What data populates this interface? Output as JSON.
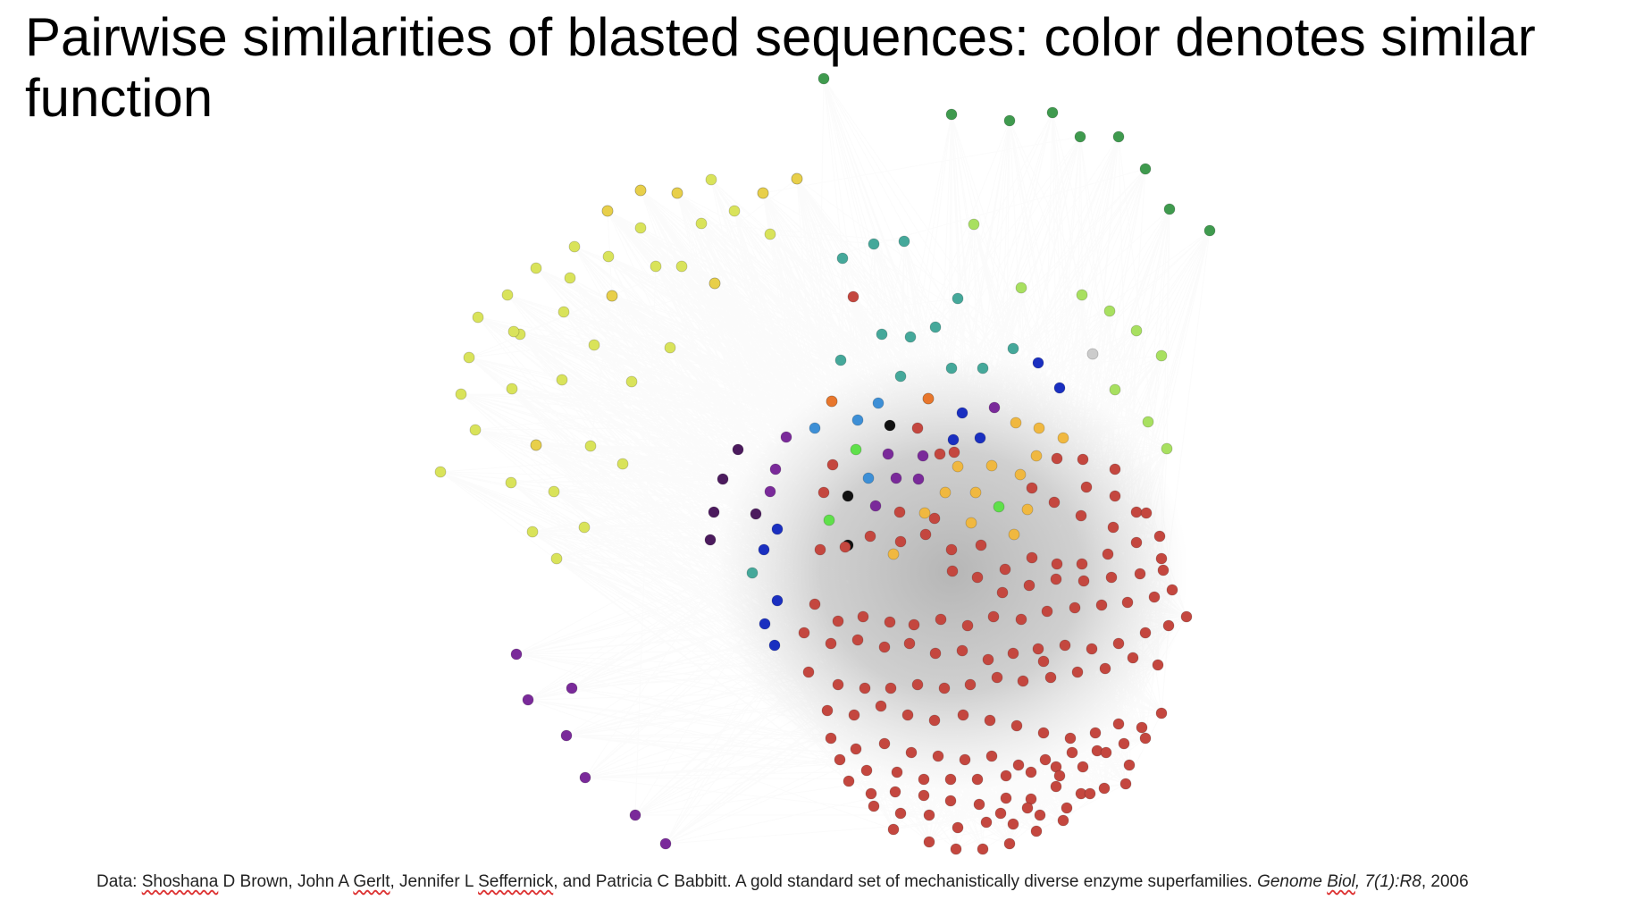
{
  "title": "Pairwise similarities of blasted sequences: color denotes similar function",
  "caption": {
    "prefix": "Data: ",
    "author1_first": "Shoshana",
    "author1_rest": " D Brown, John A ",
    "author2_last": "Gerlt",
    "mid": ", Jennifer L ",
    "author3_last": "Seffernick",
    "after_authors": ", and Patricia C Babbitt. A gold standard set of mechanistically diverse enzyme superfamilies. ",
    "journal_a": "Genome ",
    "journal_b": "Biol",
    "volume": ", 7(1):R8",
    "year": ", 2006"
  },
  "colors": {
    "edge": "#9a9a9a",
    "core_shade": "#7d7d7d",
    "node_red": "#c4473f",
    "node_yellow": "#d9e35a",
    "node_yellow_orange": "#e8cf4a",
    "node_green_dark": "#3f9a4e",
    "node_lime": "#a8e060",
    "node_teal": "#45a89a",
    "node_purple": "#7a2a9a",
    "node_dark_purple": "#4c1b5e",
    "node_blue": "#1a2fc0",
    "node_light_blue": "#3d8fd6",
    "node_orange": "#f0b840",
    "node_black": "#111111",
    "node_bright_green": "#5fe04a",
    "node_grey": "#cccccc"
  }
}
